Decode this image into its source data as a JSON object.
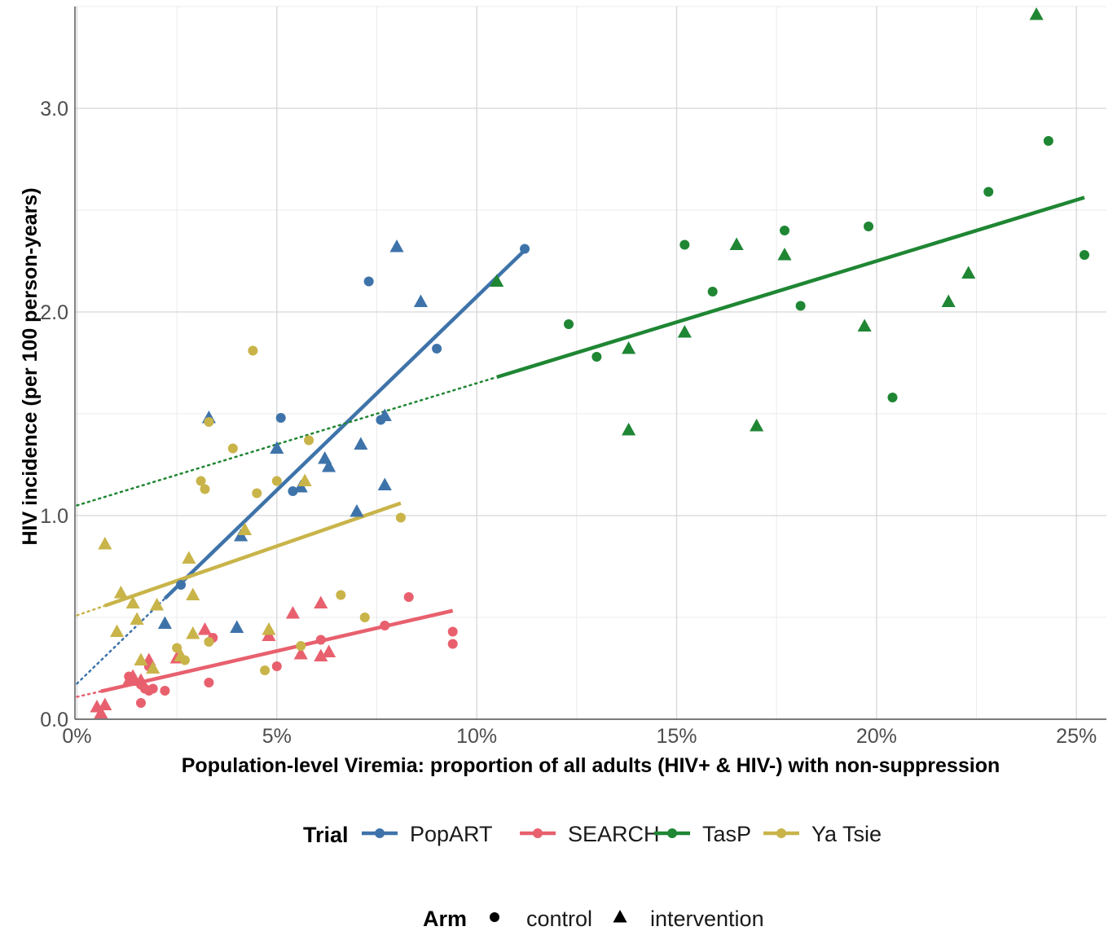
{
  "chart_data": {
    "type": "scatter",
    "xlabel": "Population-level Viremia: proportion of all adults (HIV+ & HIV-) with non-suppression",
    "ylabel": "HIV incidence (per 100 person-years)",
    "xlim": [
      -0.0005,
      0.2575
    ],
    "ylim": [
      0,
      3.5
    ],
    "x_ticks": [
      0,
      0.05,
      0.1,
      0.15,
      0.2,
      0.25
    ],
    "x_tick_labels": [
      "0%",
      "5%",
      "10%",
      "15%",
      "20%",
      "25%"
    ],
    "y_ticks": [
      0,
      1,
      2,
      3
    ],
    "y_tick_labels": [
      "0.0",
      "1.0",
      "2.0",
      "3.0"
    ],
    "y_minor": [
      0.5,
      1.5,
      2.5,
      3.5
    ],
    "grid": true,
    "legend_position": "bottom",
    "trial_legend": {
      "title": "Trial",
      "entries": [
        {
          "label": "PopART",
          "color": "#3E73AA"
        },
        {
          "label": "SEARCH",
          "color": "#E8606E"
        },
        {
          "label": "TasP",
          "color": "#1F8633"
        },
        {
          "label": "Ya Tsie",
          "color": "#C9B44A"
        }
      ]
    },
    "arm_legend": {
      "title": "Arm",
      "entries": [
        {
          "label": "control",
          "shape": "circle"
        },
        {
          "label": "intervention",
          "shape": "triangle"
        }
      ]
    },
    "series": [
      {
        "name": "PopART",
        "color": "#3E73AA",
        "fit": {
          "x_solid": [
            0.022,
            0.112
          ],
          "x_dotted": [
            0,
            0.022
          ],
          "intercept": 0.175,
          "slope": 19.0
        },
        "control": [
          [
            0.026,
            0.66
          ],
          [
            0.051,
            1.48
          ],
          [
            0.054,
            1.12
          ],
          [
            0.073,
            2.15
          ],
          [
            0.076,
            1.47
          ],
          [
            0.09,
            1.82
          ],
          [
            0.112,
            2.31
          ]
        ],
        "intervention": [
          [
            0.022,
            0.47
          ],
          [
            0.033,
            1.48
          ],
          [
            0.04,
            0.45
          ],
          [
            0.041,
            0.9
          ],
          [
            0.05,
            1.33
          ],
          [
            0.056,
            1.14
          ],
          [
            0.062,
            1.28
          ],
          [
            0.063,
            1.24
          ],
          [
            0.07,
            1.02
          ],
          [
            0.071,
            1.35
          ],
          [
            0.077,
            1.49
          ],
          [
            0.077,
            1.15
          ],
          [
            0.08,
            2.32
          ],
          [
            0.086,
            2.05
          ]
        ]
      },
      {
        "name": "SEARCH",
        "color": "#E8606E",
        "fit": {
          "x_solid": [
            0.006,
            0.094
          ],
          "x_dotted": [
            0,
            0.006
          ],
          "intercept": 0.11,
          "slope": 4.5
        },
        "control": [
          [
            0.013,
            0.21
          ],
          [
            0.016,
            0.08
          ],
          [
            0.016,
            0.17
          ],
          [
            0.017,
            0.15
          ],
          [
            0.018,
            0.26
          ],
          [
            0.018,
            0.14
          ],
          [
            0.019,
            0.15
          ],
          [
            0.022,
            0.14
          ],
          [
            0.033,
            0.18
          ],
          [
            0.034,
            0.4
          ],
          [
            0.05,
            0.26
          ],
          [
            0.061,
            0.39
          ],
          [
            0.077,
            0.46
          ],
          [
            0.083,
            0.6
          ],
          [
            0.094,
            0.43
          ],
          [
            0.094,
            0.37
          ]
        ],
        "intervention": [
          [
            0.005,
            0.06
          ],
          [
            0.006,
            0.03
          ],
          [
            0.007,
            0.07
          ],
          [
            0.013,
            0.19
          ],
          [
            0.014,
            0.21
          ],
          [
            0.016,
            0.19
          ],
          [
            0.018,
            0.29
          ],
          [
            0.025,
            0.3
          ],
          [
            0.026,
            0.31
          ],
          [
            0.032,
            0.44
          ],
          [
            0.048,
            0.41
          ],
          [
            0.054,
            0.52
          ],
          [
            0.056,
            0.32
          ],
          [
            0.061,
            0.57
          ],
          [
            0.061,
            0.31
          ],
          [
            0.063,
            0.33
          ]
        ]
      },
      {
        "name": "TasP",
        "color": "#1F8633",
        "fit": {
          "x_solid": [
            0.105,
            0.252
          ],
          "x_dotted": [
            0,
            0.105
          ],
          "intercept": 1.05,
          "slope": 6.0
        },
        "control": [
          [
            0.123,
            1.94
          ],
          [
            0.13,
            1.78
          ],
          [
            0.152,
            2.33
          ],
          [
            0.159,
            2.1
          ],
          [
            0.177,
            2.4
          ],
          [
            0.181,
            2.03
          ],
          [
            0.198,
            2.42
          ],
          [
            0.204,
            1.58
          ],
          [
            0.228,
            2.59
          ],
          [
            0.243,
            2.84
          ],
          [
            0.252,
            2.28
          ]
        ],
        "intervention": [
          [
            0.105,
            2.15
          ],
          [
            0.138,
            1.82
          ],
          [
            0.138,
            1.42
          ],
          [
            0.152,
            1.9
          ],
          [
            0.165,
            2.33
          ],
          [
            0.17,
            1.44
          ],
          [
            0.177,
            2.28
          ],
          [
            0.197,
            1.93
          ],
          [
            0.218,
            2.05
          ],
          [
            0.223,
            2.19
          ],
          [
            0.24,
            3.46
          ]
        ]
      },
      {
        "name": "Ya Tsie",
        "color": "#C9B44A",
        "fit": {
          "x_solid": [
            0.007,
            0.081
          ],
          "x_dotted": [
            0,
            0.007
          ],
          "intercept": 0.51,
          "slope": 6.8
        },
        "control": [
          [
            0.025,
            0.35
          ],
          [
            0.027,
            0.29
          ],
          [
            0.031,
            1.17
          ],
          [
            0.032,
            1.13
          ],
          [
            0.033,
            1.46
          ],
          [
            0.033,
            0.38
          ],
          [
            0.039,
            1.33
          ],
          [
            0.044,
            1.81
          ],
          [
            0.045,
            1.11
          ],
          [
            0.047,
            0.24
          ],
          [
            0.05,
            1.17
          ],
          [
            0.056,
            0.36
          ],
          [
            0.058,
            1.37
          ],
          [
            0.066,
            0.61
          ],
          [
            0.072,
            0.5
          ],
          [
            0.081,
            0.99
          ]
        ],
        "intervention": [
          [
            0.007,
            0.86
          ],
          [
            0.01,
            0.43
          ],
          [
            0.011,
            0.62
          ],
          [
            0.014,
            0.57
          ],
          [
            0.015,
            0.49
          ],
          [
            0.016,
            0.29
          ],
          [
            0.019,
            0.25
          ],
          [
            0.02,
            0.56
          ],
          [
            0.026,
            0.31
          ],
          [
            0.028,
            0.79
          ],
          [
            0.029,
            0.61
          ],
          [
            0.029,
            0.42
          ],
          [
            0.042,
            0.93
          ],
          [
            0.048,
            0.44
          ],
          [
            0.057,
            1.17
          ]
        ]
      }
    ]
  }
}
